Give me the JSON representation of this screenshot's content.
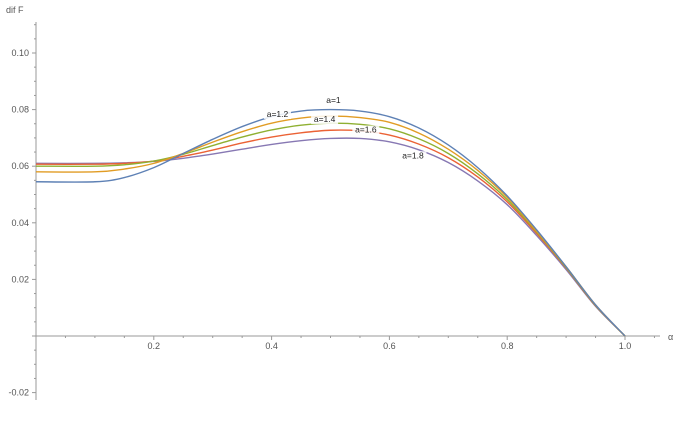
{
  "chart_data": {
    "type": "line",
    "title": "",
    "xlabel": "α",
    "ylabel": "dif F",
    "xlim": [
      0,
      1.05
    ],
    "ylim": [
      -0.03,
      0.11
    ],
    "grid": false,
    "legend": "inline labels on curves",
    "x_ticks": [
      {
        "value": 0.2,
        "label": "0.2"
      },
      {
        "value": 0.4,
        "label": "0.4"
      },
      {
        "value": 0.6,
        "label": "0.6"
      },
      {
        "value": 0.8,
        "label": "0.8"
      },
      {
        "value": 1.0,
        "label": "1.0"
      }
    ],
    "y_ticks": [
      {
        "value": -0.02,
        "label": "-0.02"
      },
      {
        "value": 0.02,
        "label": "0.02"
      },
      {
        "value": 0.04,
        "label": "0.04"
      },
      {
        "value": 0.06,
        "label": "0.06"
      },
      {
        "value": 0.08,
        "label": "0.08"
      },
      {
        "value": 0.1,
        "label": "0.10"
      }
    ],
    "series": [
      {
        "name": "a=1",
        "color": "#5e81b5",
        "x": [
          0,
          0.1,
          0.15,
          0.2,
          0.25,
          0.3,
          0.35,
          0.4,
          0.45,
          0.5,
          0.55,
          0.6,
          0.65,
          0.7,
          0.75,
          0.8,
          0.85,
          0.9,
          0.95,
          1.0
        ],
        "y": [
          0.0545,
          0.0545,
          0.056,
          0.0595,
          0.0645,
          0.0695,
          0.074,
          0.0775,
          0.0795,
          0.08,
          0.0795,
          0.0775,
          0.0735,
          0.0675,
          0.0595,
          0.0495,
          0.0375,
          0.0245,
          0.011,
          0.0
        ]
      },
      {
        "name": "a=1.2",
        "color": "#e19c24",
        "x": [
          0,
          0.1,
          0.15,
          0.2,
          0.25,
          0.3,
          0.35,
          0.4,
          0.45,
          0.5,
          0.55,
          0.6,
          0.65,
          0.7,
          0.75,
          0.8,
          0.85,
          0.9,
          0.95,
          1.0
        ],
        "y": [
          0.058,
          0.058,
          0.059,
          0.061,
          0.0645,
          0.0685,
          0.0722,
          0.0752,
          0.077,
          0.0777,
          0.0772,
          0.0755,
          0.0717,
          0.066,
          0.0585,
          0.049,
          0.037,
          0.0245,
          0.011,
          0.0
        ]
      },
      {
        "name": "a=1.4",
        "color": "#8fb032",
        "x": [
          0,
          0.1,
          0.15,
          0.2,
          0.25,
          0.3,
          0.35,
          0.4,
          0.45,
          0.5,
          0.55,
          0.6,
          0.65,
          0.7,
          0.75,
          0.8,
          0.85,
          0.9,
          0.95,
          1.0
        ],
        "y": [
          0.06,
          0.06,
          0.0605,
          0.0618,
          0.0642,
          0.0673,
          0.0703,
          0.0728,
          0.0745,
          0.0752,
          0.0748,
          0.0732,
          0.0697,
          0.0645,
          0.0573,
          0.0482,
          0.0367,
          0.0242,
          0.0108,
          0.0
        ]
      },
      {
        "name": "a=1.6",
        "color": "#eb6235",
        "x": [
          0,
          0.1,
          0.15,
          0.2,
          0.25,
          0.3,
          0.35,
          0.4,
          0.45,
          0.5,
          0.55,
          0.6,
          0.65,
          0.7,
          0.75,
          0.8,
          0.85,
          0.9,
          0.95,
          1.0
        ],
        "y": [
          0.0607,
          0.0607,
          0.061,
          0.0618,
          0.0635,
          0.0657,
          0.0682,
          0.0703,
          0.0718,
          0.0727,
          0.0725,
          0.071,
          0.0678,
          0.063,
          0.0562,
          0.0474,
          0.0362,
          0.024,
          0.0107,
          0.0
        ]
      },
      {
        "name": "a=1.8",
        "color": "#8778b3",
        "x": [
          0,
          0.1,
          0.15,
          0.2,
          0.25,
          0.3,
          0.35,
          0.4,
          0.45,
          0.5,
          0.55,
          0.6,
          0.65,
          0.7,
          0.75,
          0.8,
          0.85,
          0.9,
          0.95,
          1.0
        ],
        "y": [
          0.061,
          0.061,
          0.0612,
          0.0617,
          0.0628,
          0.0643,
          0.066,
          0.0677,
          0.069,
          0.0698,
          0.0698,
          0.0686,
          0.0658,
          0.0613,
          0.0548,
          0.0464,
          0.0355,
          0.0235,
          0.0105,
          0.0
        ]
      }
    ],
    "annotations": [
      {
        "text": "a=1",
        "x": 0.505,
        "y": 0.0823
      },
      {
        "text": "a=1.2",
        "x": 0.41,
        "y": 0.0774
      },
      {
        "text": "a=1.4",
        "x": 0.49,
        "y": 0.0756
      },
      {
        "text": "a=1.6",
        "x": 0.56,
        "y": 0.0719
      },
      {
        "text": "a=1.8",
        "x": 0.64,
        "y": 0.0628
      }
    ]
  }
}
